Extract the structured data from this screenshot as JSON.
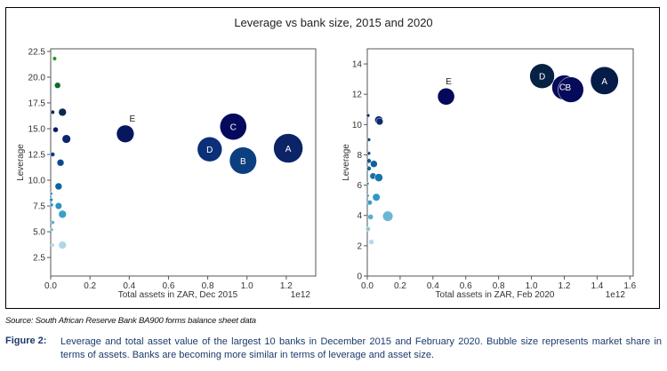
{
  "chart_data": [
    {
      "type": "scatter",
      "subtype": "bubble",
      "title": "Leverage vs bank size, 2015 and 2020",
      "xlabel": "Total assets in ZAR, Dec 2015",
      "ylabel": "Leverage",
      "x_offset_label": "1e12",
      "xlim": [
        0,
        1.35
      ],
      "ylim": [
        0.7,
        22.75
      ],
      "xticks": [
        "0.0",
        "0.2",
        "0.4",
        "0.6",
        "0.8",
        "1.0",
        "1.2"
      ],
      "xtick_values": [
        0,
        0.2,
        0.4,
        0.6,
        0.8,
        1.0,
        1.2
      ],
      "yticks": [
        "2.5",
        "5.0",
        "7.5",
        "10.0",
        "12.5",
        "15.0",
        "17.5",
        "20.0",
        "22.5"
      ],
      "ytick_values": [
        2.5,
        5,
        7.5,
        10,
        12.5,
        15,
        17.5,
        20,
        22.5
      ],
      "grid": false,
      "points": [
        {
          "label": "",
          "x": 0.02,
          "y": 21.8,
          "size": 0.4,
          "color": "#1a9a1a"
        },
        {
          "label": "",
          "x": 0.035,
          "y": 19.2,
          "size": 0.9,
          "color": "#0d6b2a"
        },
        {
          "label": "",
          "x": 0.01,
          "y": 16.6,
          "size": 0.4,
          "color": "#0e2a56"
        },
        {
          "label": "",
          "x": 0.06,
          "y": 16.6,
          "size": 1.5,
          "color": "#0b2a50"
        },
        {
          "label": "",
          "x": 0.025,
          "y": 14.9,
          "size": 0.7,
          "color": "#0a1a6a"
        },
        {
          "label": "",
          "x": 0.08,
          "y": 14.0,
          "size": 1.8,
          "color": "#0b2570"
        },
        {
          "label": "",
          "x": 0.01,
          "y": 12.5,
          "size": 0.5,
          "color": "#0c3e8a"
        },
        {
          "label": "",
          "x": 0.05,
          "y": 11.7,
          "size": 1.2,
          "color": "#0d4a8c"
        },
        {
          "label": "",
          "x": 0.04,
          "y": 9.4,
          "size": 1.2,
          "color": "#0d63a0"
        },
        {
          "label": "",
          "x": 0.003,
          "y": 8.7,
          "size": 0.15,
          "color": "#1a7ab0"
        },
        {
          "label": "",
          "x": 0.003,
          "y": 8.1,
          "size": 0.3,
          "color": "#1e86b6"
        },
        {
          "label": "",
          "x": 0.005,
          "y": 7.6,
          "size": 0.3,
          "color": "#2590bc"
        },
        {
          "label": "",
          "x": 0.04,
          "y": 7.5,
          "size": 1.1,
          "color": "#2b93bf"
        },
        {
          "label": "",
          "x": 0.06,
          "y": 6.7,
          "size": 1.5,
          "color": "#3aa0c6"
        },
        {
          "label": "",
          "x": 0.01,
          "y": 5.9,
          "size": 0.35,
          "color": "#5ab0d0"
        },
        {
          "label": "",
          "x": 0.005,
          "y": 5.2,
          "size": 0.3,
          "color": "#6bbad4"
        },
        {
          "label": "",
          "x": 0.01,
          "y": 3.7,
          "size": 0.35,
          "color": "#b3dbe8"
        },
        {
          "label": "",
          "x": 0.06,
          "y": 3.7,
          "size": 1.5,
          "color": "#aed8e6"
        },
        {
          "label": "E",
          "x": 0.38,
          "y": 14.5,
          "size": 7.5,
          "color": "#07175e"
        },
        {
          "label": "C",
          "x": 0.93,
          "y": 15.2,
          "size": 17.5,
          "color": "#050a5e"
        },
        {
          "label": "D",
          "x": 0.81,
          "y": 13.0,
          "size": 15.0,
          "color": "#0b2f78"
        },
        {
          "label": "B",
          "x": 0.98,
          "y": 11.9,
          "size": 18.0,
          "color": "#0b3f80"
        },
        {
          "label": "A",
          "x": 1.21,
          "y": 13.1,
          "size": 21.0,
          "color": "#0a2467"
        }
      ]
    },
    {
      "type": "scatter",
      "subtype": "bubble",
      "title": "Leverage vs bank size, 2015 and 2020",
      "xlabel": "Total assets in ZAR, Feb 2020",
      "ylabel": "Leverage",
      "x_offset_label": "1e12",
      "xlim": [
        0,
        1.62
      ],
      "ylim": [
        0,
        15.0
      ],
      "xticks": [
        "0.0",
        "0.2",
        "0.4",
        "0.6",
        "0.8",
        "1.0",
        "1.2",
        "1.4",
        "1.6"
      ],
      "xtick_values": [
        0,
        0.2,
        0.4,
        0.6,
        0.8,
        1.0,
        1.2,
        1.4,
        1.6
      ],
      "yticks": [
        "0",
        "2",
        "4",
        "6",
        "8",
        "10",
        "12",
        "14"
      ],
      "ytick_values": [
        0,
        2,
        4,
        6,
        8,
        10,
        12,
        14
      ],
      "grid": false,
      "points": [
        {
          "label": "",
          "x": 0.005,
          "y": 10.6,
          "size": 0.3,
          "color": "#0c2a66"
        },
        {
          "label": "",
          "x": 0.07,
          "y": 10.3,
          "size": 1.6,
          "color": "#0b2a70"
        },
        {
          "label": "",
          "x": 0.075,
          "y": 10.2,
          "size": 1.2,
          "color": "#0b2a70"
        },
        {
          "label": "",
          "x": 0.01,
          "y": 9.0,
          "size": 0.3,
          "color": "#0d3e88"
        },
        {
          "label": "",
          "x": 0.01,
          "y": 8.1,
          "size": 0.3,
          "color": "#0d4a90"
        },
        {
          "label": "",
          "x": 0.01,
          "y": 7.6,
          "size": 0.5,
          "color": "#0f5596"
        },
        {
          "label": "",
          "x": 0.04,
          "y": 7.4,
          "size": 1.2,
          "color": "#11609c"
        },
        {
          "label": "",
          "x": 0.01,
          "y": 7.1,
          "size": 0.5,
          "color": "#1268a2"
        },
        {
          "label": "",
          "x": 0.035,
          "y": 6.6,
          "size": 1.0,
          "color": "#1670a8"
        },
        {
          "label": "",
          "x": 0.07,
          "y": 6.5,
          "size": 1.6,
          "color": "#1577ac"
        },
        {
          "label": "",
          "x": 0.003,
          "y": 6.1,
          "size": 0.1,
          "color": "#2188b8"
        },
        {
          "label": "",
          "x": 0.003,
          "y": 5.3,
          "size": 0.2,
          "color": "#2c92be"
        },
        {
          "label": "",
          "x": 0.055,
          "y": 5.2,
          "size": 1.4,
          "color": "#2f98c2"
        },
        {
          "label": "",
          "x": 0.015,
          "y": 4.85,
          "size": 0.6,
          "color": "#3a9ec4"
        },
        {
          "label": "",
          "x": 0.02,
          "y": 3.9,
          "size": 0.7,
          "color": "#58aecf"
        },
        {
          "label": "",
          "x": 0.125,
          "y": 3.95,
          "size": 2.6,
          "color": "#6ab7d3"
        },
        {
          "label": "",
          "x": 0.005,
          "y": 3.1,
          "size": 0.5,
          "color": "#8cc8dc"
        },
        {
          "label": "",
          "x": 0.025,
          "y": 2.25,
          "size": 0.7,
          "color": "#b5dce8"
        },
        {
          "label": "E",
          "x": 0.48,
          "y": 11.85,
          "size": 7.0,
          "color": "#05095a"
        },
        {
          "label": "D",
          "x": 1.065,
          "y": 13.2,
          "size": 15.0,
          "color": "#062143"
        },
        {
          "label": "C",
          "x": 1.2,
          "y": 12.45,
          "size": 15.0,
          "color": "#050a5a"
        },
        {
          "label": "B",
          "x": 1.24,
          "y": 12.3,
          "size": 16.0,
          "color": "#050a5a"
        },
        {
          "label": "A",
          "x": 1.445,
          "y": 12.9,
          "size": 19.0,
          "color": "#061c48"
        }
      ]
    }
  ],
  "figure": {
    "title": "Leverage vs bank size, 2015 and 2020",
    "source": "Source: South African Reserve Bank BA900 forms balance sheet data",
    "figure_label": "Figure 2:",
    "caption": "Leverage and total asset value of the largest 10 banks in December 2015 and February 2020. Bubble size represents market share in terms of assets. Banks are becoming more similar in terms of leverage and asset size."
  }
}
